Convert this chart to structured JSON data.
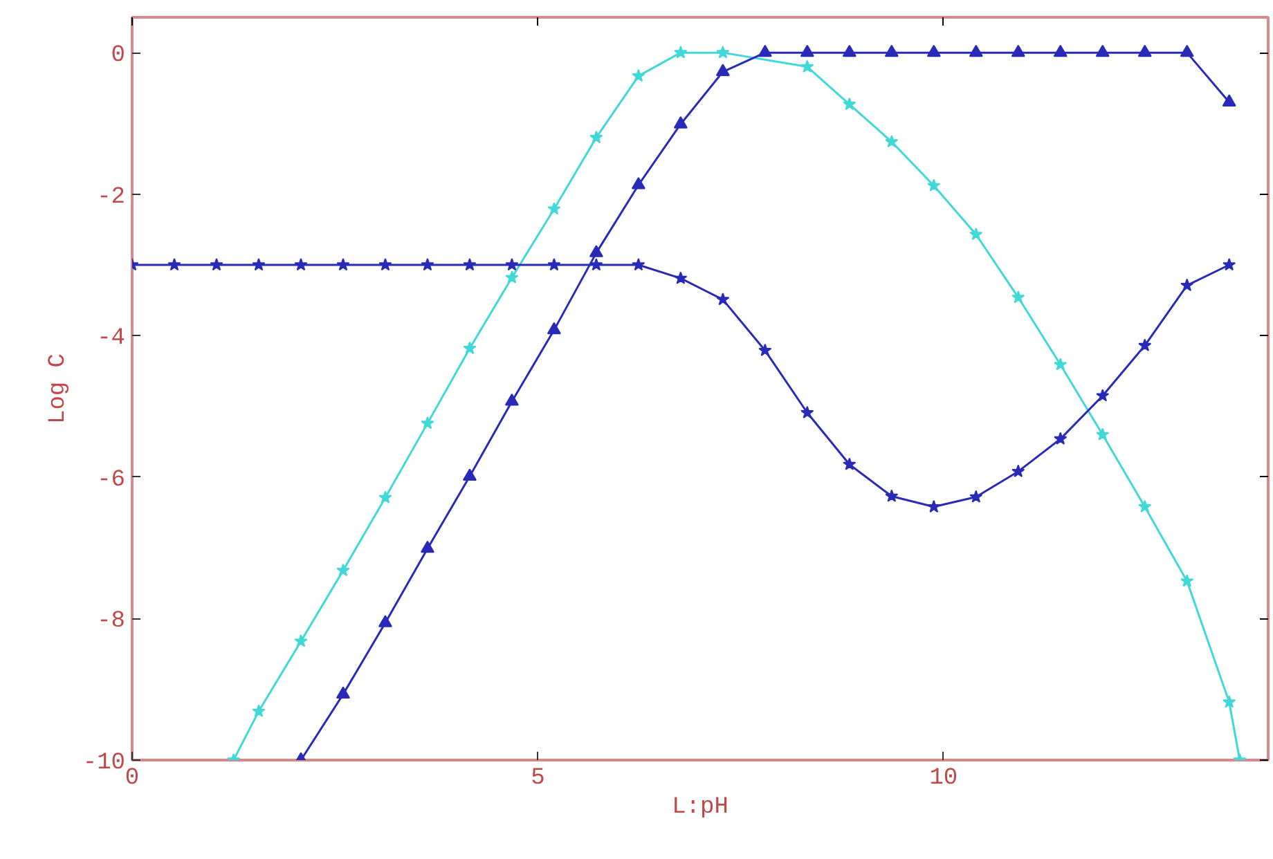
{
  "chart_data": {
    "type": "line",
    "xlabel": "L:pH",
    "ylabel": "Log C",
    "xlim": [
      0,
      14
    ],
    "ylim": [
      -10,
      0.5
    ],
    "xticks": [
      0,
      5,
      10
    ],
    "yticks": [
      0,
      -2,
      -4,
      -6,
      -8,
      -10
    ],
    "grid": false,
    "line_style": "solid",
    "series": [
      {
        "color": "#40d8d8",
        "marker": "star",
        "x": [
          1.25,
          1.56,
          2.08,
          2.6,
          3.12,
          3.64,
          4.16,
          4.68,
          5.2,
          5.72,
          6.24,
          6.76,
          7.28,
          7.8,
          8.32,
          8.84,
          9.36,
          9.88,
          10.4,
          10.92,
          11.44,
          11.96,
          12.48,
          13.0,
          13.52,
          13.65
        ],
        "values": [
          -10,
          -9.31,
          -8.32,
          -7.32,
          -6.29,
          -5.24,
          -4.18,
          -3.18,
          -2.21,
          -1.2,
          -0.33,
          0,
          0,
          null,
          -0.2,
          -0.73,
          -1.26,
          -1.88,
          -2.57,
          -3.46,
          -4.41,
          -5.4,
          -6.42,
          -7.47,
          -9.18,
          -10
        ]
      },
      {
        "color": "#2a2ab8",
        "marker": "triangle",
        "x": [
          2.08,
          2.6,
          3.12,
          3.64,
          4.16,
          4.68,
          5.2,
          5.72,
          6.24,
          6.76,
          7.28,
          7.8,
          8.32,
          8.84,
          9.36,
          9.88,
          10.4,
          10.92,
          11.44,
          11.96,
          12.48,
          13.0,
          13.52
        ],
        "values": [
          -10,
          -9.07,
          -8.06,
          -7.01,
          -5.99,
          -4.93,
          -3.92,
          -2.83,
          -1.87,
          -1.01,
          -0.27,
          0,
          0,
          0,
          0,
          0,
          0,
          0,
          0,
          0,
          0,
          0,
          -0.7
        ]
      },
      {
        "color": "#2a2ab8",
        "marker": "star",
        "x": [
          0,
          0.52,
          1.04,
          1.56,
          2.08,
          2.6,
          3.12,
          3.64,
          4.16,
          4.68,
          5.2,
          5.72,
          6.24,
          6.76,
          7.28,
          7.8,
          8.32,
          8.84,
          9.36,
          9.88,
          10.4,
          10.92,
          11.44,
          11.96,
          12.48,
          13.0,
          13.52
        ],
        "values": [
          -3,
          -3,
          -3,
          -3,
          -3,
          -3,
          -3,
          -3,
          -3,
          -3,
          -3,
          -3,
          -3,
          -3.19,
          -3.49,
          -4.21,
          -5.09,
          -5.82,
          -6.27,
          -6.42,
          -6.28,
          -5.92,
          -5.46,
          -4.85,
          -4.14,
          -3.29,
          -3.0
        ]
      }
    ]
  }
}
